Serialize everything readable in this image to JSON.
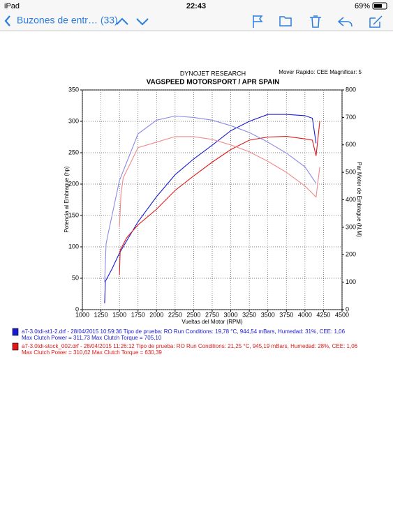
{
  "status_bar": {
    "device": "iPad",
    "time": "22:43",
    "battery": "69%"
  },
  "toolbar": {
    "back": "Buzones de entr… (33)"
  },
  "chart_data": {
    "type": "line",
    "header": "DYNOJET RESEARCH",
    "options": "Mover Rapido: CEE  Magnificar: 5",
    "title": "VAGSPEED MOTORSPORT / APR SPAIN",
    "xlabel": "Vueltas del Motor (RPM)",
    "ylabel": "Potencia al Embrague (hp)",
    "y2label": "Par Motor de Embrague (N.M)",
    "xlim": [
      1000,
      4500
    ],
    "xticks": [
      1000,
      1250,
      1500,
      1750,
      2000,
      2250,
      2500,
      2750,
      3000,
      3250,
      3500,
      3750,
      4000,
      4250,
      4500
    ],
    "ylim": [
      0,
      350
    ],
    "yticks": [
      0,
      50,
      100,
      150,
      200,
      250,
      300,
      350
    ],
    "y2lim": [
      0,
      800
    ],
    "y2ticks": [
      0,
      100,
      200,
      300,
      400,
      500,
      600,
      700,
      800
    ],
    "grid": true,
    "series": [
      {
        "color": "#1a1ad0",
        "axis": "y",
        "x": [
          1300,
          1310,
          1400,
          1500,
          1750,
          2000,
          2250,
          2500,
          2750,
          3000,
          3250,
          3500,
          3750,
          4000,
          4100,
          4150
        ],
        "values": [
          10,
          45,
          65,
          90,
          140,
          180,
          215,
          240,
          262,
          285,
          300,
          311,
          311,
          309,
          305,
          265
        ]
      },
      {
        "color": "#e01818",
        "axis": "y",
        "x": [
          1500,
          1510,
          1600,
          1750,
          2000,
          2250,
          2500,
          2750,
          3000,
          3250,
          3500,
          3750,
          4000,
          4100,
          4150,
          4200
        ],
        "values": [
          55,
          95,
          115,
          135,
          160,
          190,
          213,
          235,
          255,
          270,
          275,
          276,
          272,
          270,
          245,
          300
        ]
      },
      {
        "color": "#8a8ae6",
        "axis": "y2",
        "x": [
          1300,
          1320,
          1350,
          1500,
          1750,
          2000,
          2250,
          2500,
          2750,
          3000,
          3250,
          3500,
          3750,
          4000,
          4150
        ],
        "values": [
          100,
          240,
          280,
          470,
          640,
          690,
          705,
          700,
          690,
          670,
          645,
          610,
          570,
          520,
          460
        ]
      },
      {
        "color": "#f08a8a",
        "axis": "y2",
        "x": [
          1500,
          1520,
          1550,
          1750,
          2000,
          2250,
          2500,
          2750,
          3000,
          3250,
          3500,
          3750,
          4000,
          4150,
          4200
        ],
        "values": [
          300,
          420,
          480,
          590,
          610,
          630,
          630,
          620,
          600,
          575,
          540,
          500,
          450,
          410,
          520
        ]
      }
    ],
    "legend": [
      {
        "color": "#1a1ad0",
        "line1": "a7-3.0tdi-st1-2.drf - 28/04/2015 10:59:36  Tipo de prueba: RO  Run Conditions: 19,78 °C, 944,54 mBars,  Humedad: 31%, CEE: 1,06",
        "line2": "Max Clutch Power = 311,73  Max Clutch Torque = 705,10"
      },
      {
        "color": "#e01818",
        "line1": "a7-3.0tdi-stock_002.drf - 28/04/2015 11:26:12  Tipo de prueba: RO  Run Conditions: 21,25 °C, 945,19 mBars,  Humedad: 28%, CEE: 1,06",
        "line2": "Max Clutch Power = 310,62  Max Clutch Torque = 630,39"
      }
    ]
  }
}
